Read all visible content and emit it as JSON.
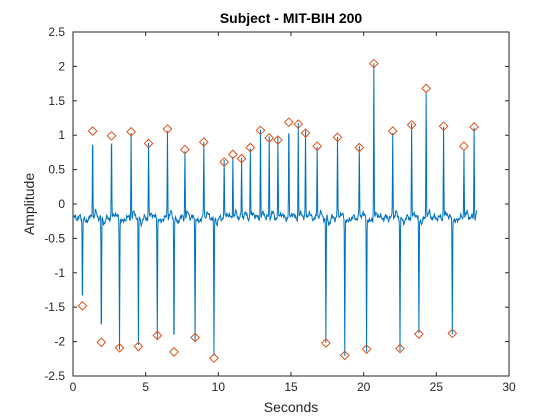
{
  "chart_data": {
    "type": "line",
    "title": "Subject - MIT-BIH 200",
    "xlabel": "Seconds",
    "ylabel": "Amplitude",
    "xlim": [
      0,
      30
    ],
    "ylim": [
      -2.5,
      2.5
    ],
    "xticks": [
      0,
      5,
      10,
      15,
      20,
      25,
      30
    ],
    "yticks": [
      -2.5,
      -2,
      -1.5,
      -1,
      -0.5,
      0,
      0.5,
      1,
      1.5,
      2,
      2.5
    ],
    "xtick_labels": [
      "0",
      "5",
      "10",
      "15",
      "20",
      "25",
      "30"
    ],
    "ytick_labels": [
      "-2.5",
      "-2",
      "-1.5",
      "-1",
      "-0.5",
      "0",
      "0.5",
      "1",
      "1.5",
      "2",
      "2.5"
    ],
    "grid": false,
    "legend": "none",
    "x_end": 27.8,
    "series": [
      {
        "kind": "signal",
        "color": "#0072BD",
        "baseline": -0.2
      },
      {
        "kind": "peaks",
        "marker": "diamond",
        "color": "#D95319",
        "points": [
          [
            0.65,
            -1.48
          ],
          [
            1.35,
            1.06
          ],
          [
            1.95,
            -2.01
          ],
          [
            2.65,
            0.99
          ],
          [
            3.2,
            -2.09
          ],
          [
            4.0,
            1.05
          ],
          [
            4.5,
            -2.07
          ],
          [
            5.2,
            0.88
          ],
          [
            5.8,
            -1.91
          ],
          [
            6.5,
            1.09
          ],
          [
            6.95,
            -2.15
          ],
          [
            7.7,
            0.79
          ],
          [
            8.4,
            -1.94
          ],
          [
            9.0,
            0.9
          ],
          [
            9.7,
            -2.24
          ],
          [
            10.4,
            0.61
          ],
          [
            11.0,
            0.72
          ],
          [
            11.6,
            0.66
          ],
          [
            12.2,
            0.82
          ],
          [
            12.9,
            1.07
          ],
          [
            13.5,
            0.96
          ],
          [
            14.1,
            0.93
          ],
          [
            14.85,
            1.19
          ],
          [
            15.5,
            1.16
          ],
          [
            16.0,
            1.03
          ],
          [
            16.8,
            0.84
          ],
          [
            17.4,
            -2.02
          ],
          [
            18.2,
            0.97
          ],
          [
            18.7,
            -2.2
          ],
          [
            19.7,
            0.82
          ],
          [
            20.2,
            -2.11
          ],
          [
            20.7,
            2.04
          ],
          [
            22.0,
            1.06
          ],
          [
            22.5,
            -2.1
          ],
          [
            23.3,
            1.15
          ],
          [
            23.8,
            -1.89
          ],
          [
            24.3,
            1.68
          ],
          [
            25.5,
            1.13
          ],
          [
            26.1,
            -1.88
          ],
          [
            26.9,
            0.84
          ],
          [
            27.6,
            1.12
          ]
        ]
      }
    ]
  }
}
